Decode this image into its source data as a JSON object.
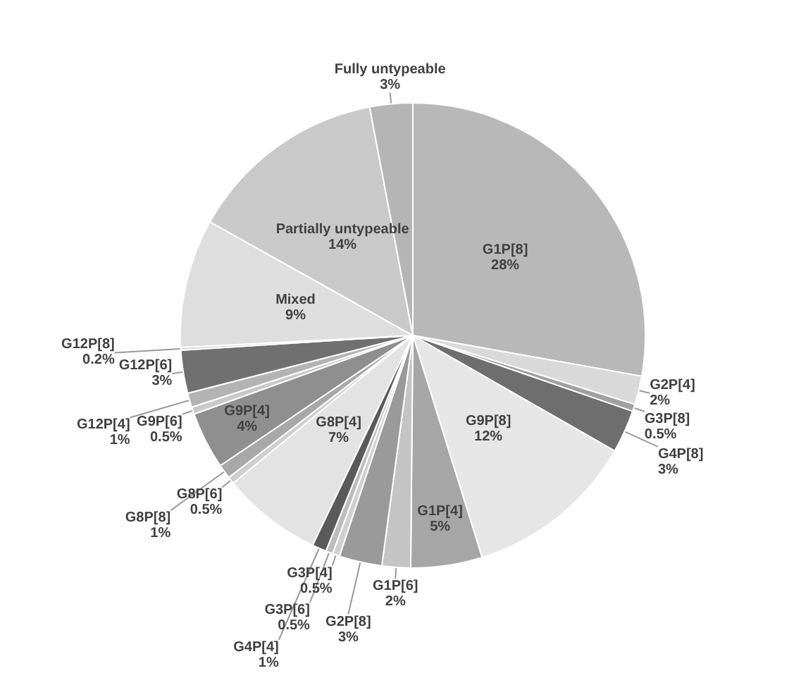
{
  "chart_data": {
    "type": "pie",
    "categories": [
      "G1P[8]",
      "G2P[4]",
      "G3P[8]",
      "G4P[8]",
      "G9P[8]",
      "G1P[4]",
      "G1P[6]",
      "G2P[8]",
      "G3P[4]",
      "G3P[6]",
      "G4P[4]",
      "G8P[4]",
      "G8P[6]",
      "G8P[8]",
      "G9P[4]",
      "G9P[6]",
      "G12P[4]",
      "G12P[6]",
      "G12P[8]",
      "Mixed",
      "Partially untypeable",
      "Fully untypeable"
    ],
    "values": [
      28,
      2,
      0.5,
      3,
      12,
      5,
      2,
      3,
      0.5,
      0.5,
      1,
      7,
      0.5,
      1,
      4,
      0.5,
      1,
      3,
      0.2,
      9,
      14,
      3
    ],
    "value_labels": [
      "28%",
      "2%",
      "0.5%",
      "3%",
      "12%",
      "5%",
      "2%",
      "3%",
      "0.5%",
      "0.5%",
      "1%",
      "7%",
      "0.5%",
      "1%",
      "4%",
      "0.5%",
      "1%",
      "3%",
      "0.2%",
      "9%",
      "14%",
      "3%"
    ],
    "colors": [
      "#b8b8b8",
      "#d9d9d9",
      "#a0a0a0",
      "#6e6e6e",
      "#e6e6e6",
      "#a6a6a6",
      "#c4c4c4",
      "#9a9a9a",
      "#d0d0d0",
      "#bdbdbd",
      "#5a5a5a",
      "#e3e3e3",
      "#cfcfcf",
      "#a8a8a8",
      "#8f8f8f",
      "#c8c8c8",
      "#b3b3b3",
      "#707070",
      "#d6d6d6",
      "#dedede",
      "#c9c9c9",
      "#b5b5b5"
    ],
    "legend": false
  }
}
